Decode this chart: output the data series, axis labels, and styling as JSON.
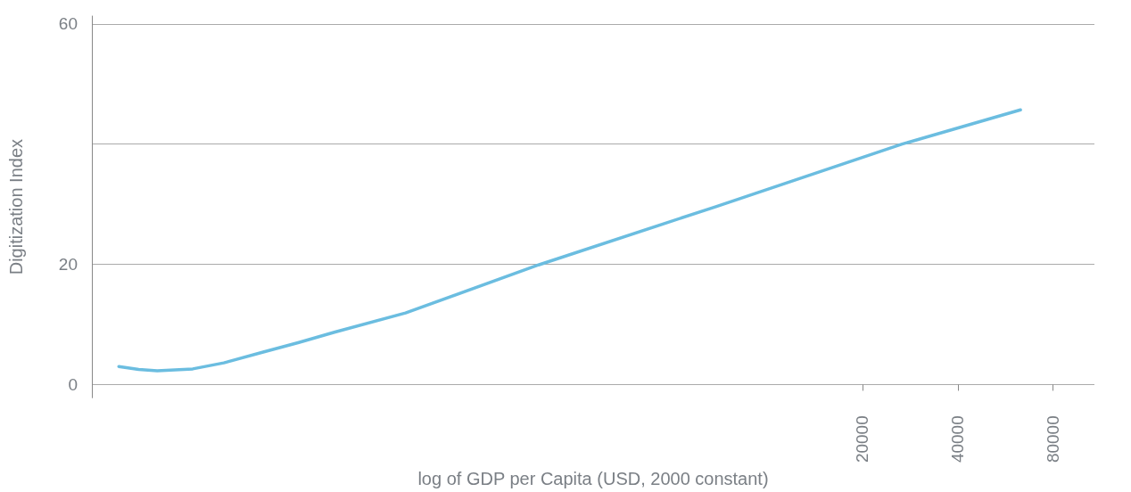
{
  "chart_data": {
    "type": "line",
    "xlabel": "log of GDP per Capita (USD, 2000 constant)",
    "ylabel": "Digitization Index",
    "log": "x",
    "x": [
      90,
      104,
      119,
      154,
      193,
      257,
      333,
      431,
      723,
      1901,
      6900,
      26700,
      63100
    ],
    "series": [
      {
        "color": "#6bbde0",
        "values": [
          3.0,
          2.5,
          2.3,
          2.6,
          3.6,
          5.4,
          7.0,
          8.7,
          11.9,
          19.9,
          29.6,
          40,
          45.7
        ]
      }
    ],
    "xlim": [
      74,
      108000
    ],
    "xticks": [
      20000,
      40000,
      80000
    ],
    "ylim": [
      -2.2,
      61.3
    ],
    "yticks": [
      0,
      20,
      {
        "value": 40,
        "label": null
      },
      60
    ],
    "grid": "y",
    "marker": "none",
    "line_style": "solid"
  }
}
